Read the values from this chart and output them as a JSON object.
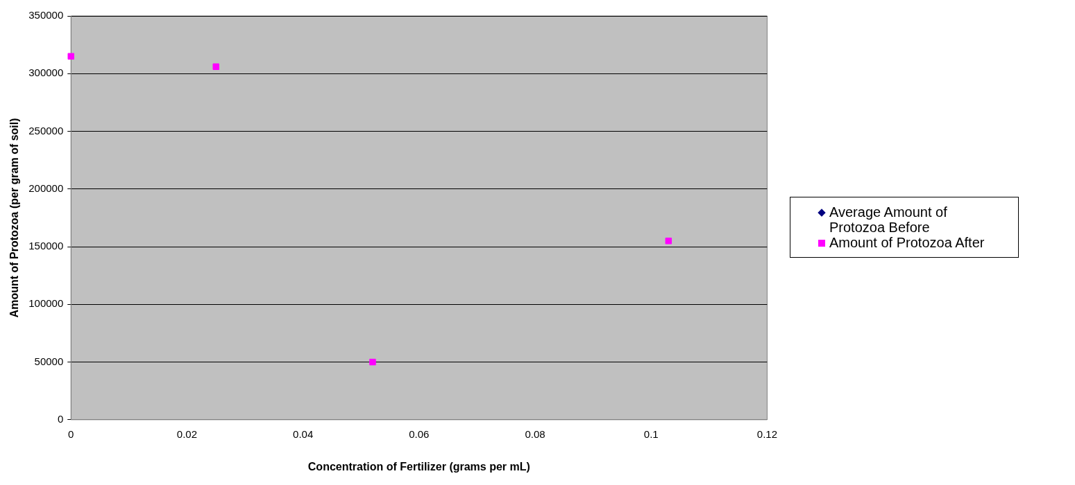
{
  "chart_data": {
    "type": "scatter",
    "xlabel": "Concentration of Fertilizer (grams per mL)",
    "ylabel": "Amount of Protozoa (per gram of soil)",
    "series": [
      {
        "name": "Average Amount of Protozoa Before",
        "color": "#000080",
        "marker": "diamond"
      },
      {
        "name": "Amount of Protozoa After",
        "color": "#ff00ff",
        "marker": "square",
        "x": [
          0,
          0.025,
          0.052,
          0.103
        ],
        "values": [
          315000,
          306000,
          50000,
          155000
        ]
      }
    ],
    "xlim": [
      0,
      0.12
    ],
    "xticks": [
      0,
      0.02,
      0.04,
      0.06,
      0.08,
      0.1,
      0.12
    ],
    "ylim": [
      0,
      350000
    ],
    "yticks": [
      0,
      50000,
      100000,
      150000,
      200000,
      250000,
      300000,
      350000
    ],
    "grid": "y",
    "legend": "right"
  }
}
